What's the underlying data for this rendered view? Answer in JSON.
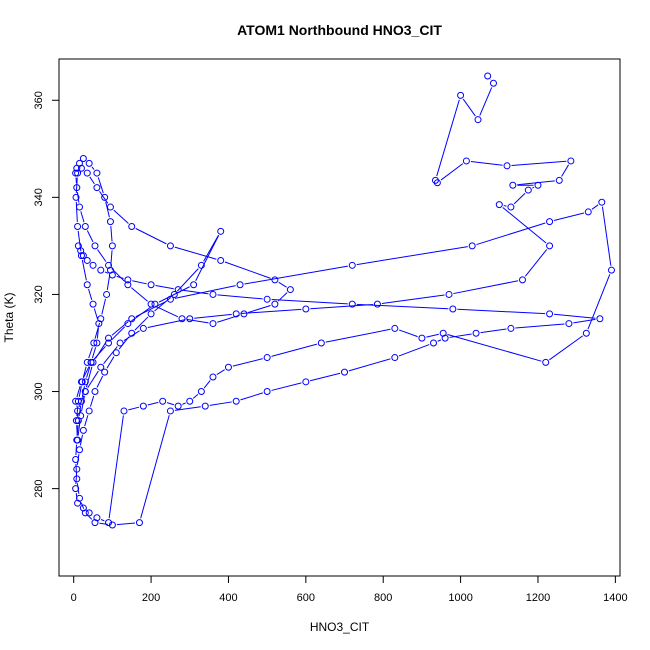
{
  "chart_data": {
    "type": "line",
    "title": "ATOM1 Northbound HNO3_CIT",
    "xlabel": "HNO3_CIT",
    "ylabel": "Theta (K)",
    "xlim": [
      -38,
      1412
    ],
    "ylim": [
      262.0,
      368.5
    ],
    "xticks": [
      0,
      200,
      400,
      600,
      800,
      1000,
      1200,
      1400
    ],
    "yticks": [
      280,
      300,
      320,
      340,
      360
    ],
    "grid": false,
    "legend": "none",
    "series_style": "points connected by lines (type=b)",
    "color": "#0000ff",
    "series": [
      {
        "name": "",
        "x": [
          1070,
          1085,
          1045,
          1000,
          935,
          940,
          1015,
          1120,
          1285,
          1255,
          1135,
          1200,
          1175,
          1130,
          1100,
          1230,
          1160,
          970,
          785,
          600,
          420,
          300,
          180,
          120,
          70,
          30,
          10,
          5,
          20,
          45,
          90,
          140,
          210,
          310,
          380,
          330,
          260,
          200,
          150,
          110,
          80,
          55,
          40,
          25,
          15,
          8,
          5,
          10,
          25,
          40,
          60,
          90,
          130,
          180,
          230,
          270,
          300,
          330,
          360,
          400,
          500,
          640,
          830,
          900,
          955,
          1220,
          1325,
          1390,
          1365,
          1330,
          1230,
          1030,
          720,
          430,
          250,
          150,
          90,
          50,
          30,
          18,
          10,
          7,
          12,
          22,
          35,
          52,
          70,
          85,
          95,
          100,
          95,
          80,
          60,
          40,
          25,
          15,
          8,
          5,
          8,
          15,
          30,
          55,
          90,
          140,
          200,
          280,
          360,
          440,
          520,
          560,
          520,
          380,
          250,
          150,
          95,
          60,
          35,
          20,
          10,
          6,
          10,
          20,
          35,
          50,
          65,
          60,
          45,
          30,
          20,
          12,
          8,
          5,
          8,
          15,
          30,
          55,
          100,
          170,
          250,
          340,
          420,
          500,
          600,
          700,
          830,
          930,
          960,
          1040,
          1130,
          1280,
          1360,
          1230,
          980,
          720,
          500,
          360,
          270,
          200,
          140,
          100,
          70,
          50,
          35,
          25,
          18,
          12
        ],
        "y": [
          365,
          363.5,
          356,
          361,
          343.5,
          343,
          347.5,
          346.5,
          347.5,
          343.5,
          342.5,
          342.5,
          341.5,
          338,
          338.5,
          330,
          323,
          320,
          318,
          317,
          316,
          315,
          313,
          310,
          305,
          300,
          296,
          298,
          302,
          306,
          310,
          314,
          318,
          322,
          333,
          326,
          320,
          316,
          312,
          308,
          304,
          300,
          296,
          292,
          288,
          284,
          280,
          277,
          276,
          275,
          274,
          273,
          296,
          297,
          298,
          297,
          298,
          300,
          303,
          305,
          307,
          310,
          313,
          311,
          312,
          306,
          312,
          325,
          339,
          337,
          335,
          330,
          326,
          322,
          319,
          315,
          311,
          306,
          300,
          295,
          290,
          294,
          298,
          302,
          306,
          310,
          315,
          320,
          325,
          330,
          335,
          340,
          345,
          347,
          348,
          347,
          346,
          345,
          342,
          338,
          334,
          330,
          326,
          322,
          318,
          315,
          314,
          316,
          318,
          321,
          323,
          327,
          330,
          334,
          338,
          342,
          345,
          346,
          345,
          340,
          334,
          328,
          322,
          318,
          314,
          310,
          306,
          302,
          298,
          294,
          290,
          286,
          282,
          278,
          275,
          273,
          272.5,
          273,
          296,
          297,
          298,
          300,
          302,
          304,
          307,
          310,
          311,
          312,
          313,
          314,
          315,
          316,
          317,
          318,
          319,
          320,
          321,
          322,
          323,
          324,
          325,
          326,
          327,
          328,
          329,
          330
        ]
      }
    ]
  }
}
